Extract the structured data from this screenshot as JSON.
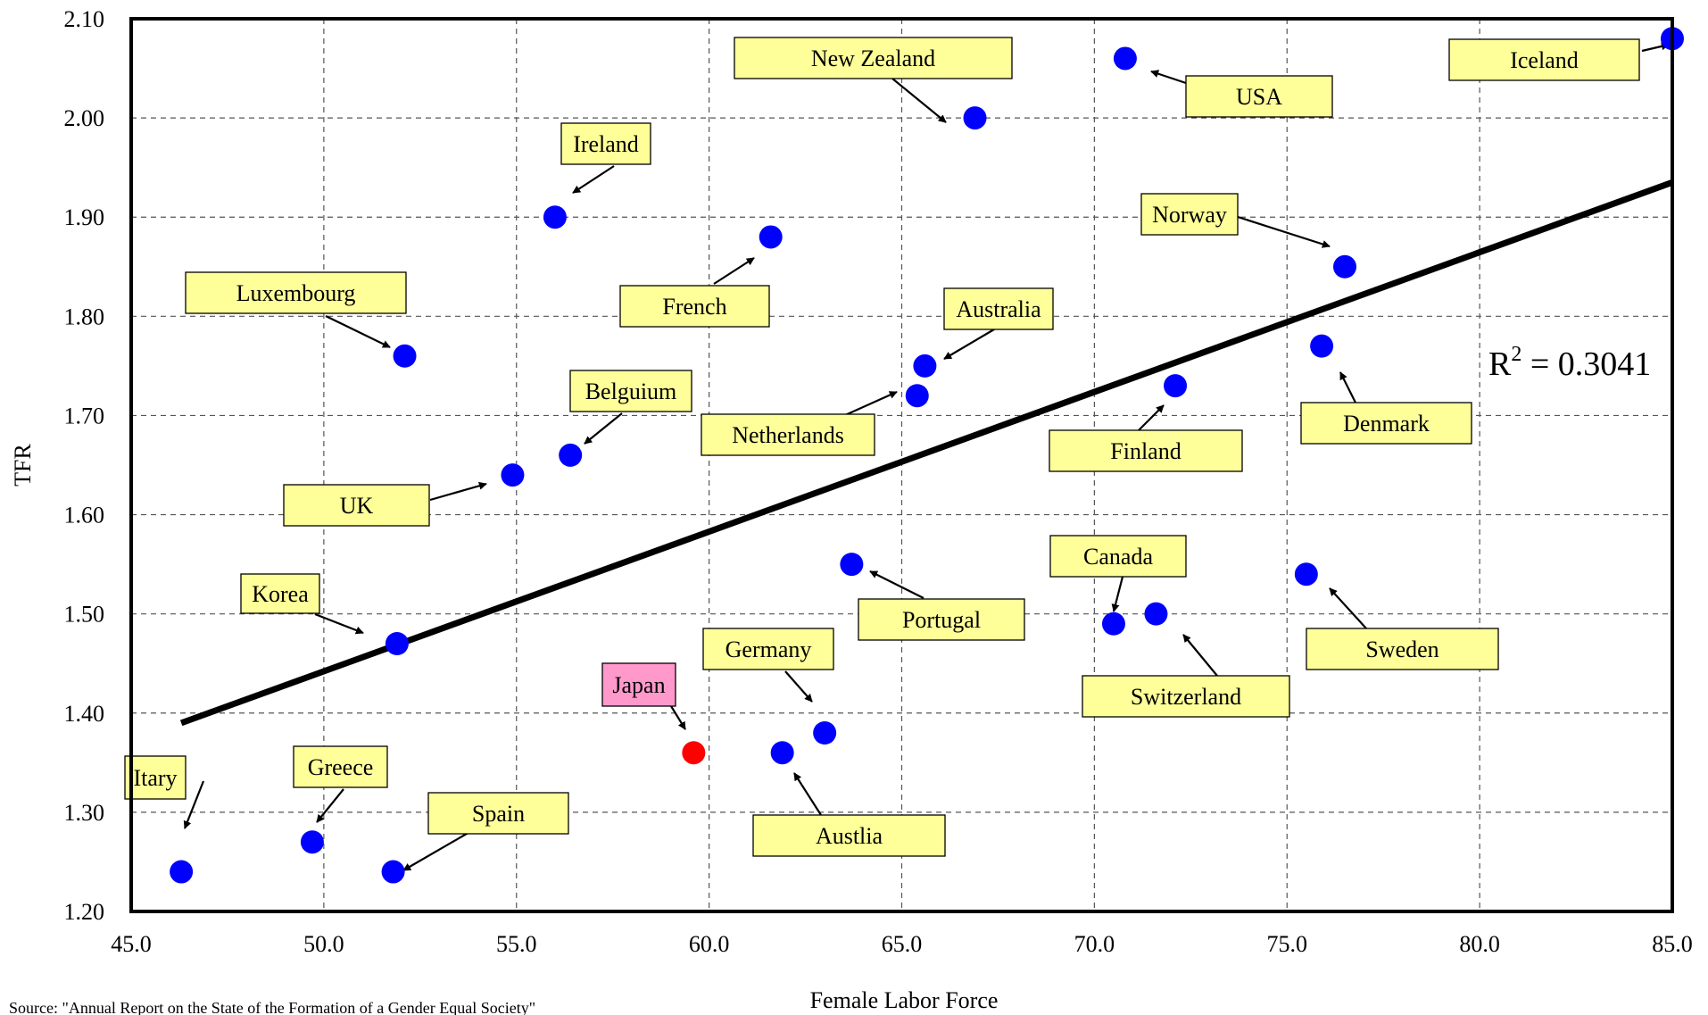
{
  "chart_data": {
    "type": "scatter",
    "xlabel": "Female Labor Force",
    "ylabel": "TFR",
    "xlim": [
      45.0,
      85.0
    ],
    "ylim": [
      1.2,
      2.1
    ],
    "x_ticks": [
      "45.0",
      "50.0",
      "55.0",
      "60.0",
      "65.0",
      "70.0",
      "75.0",
      "80.0",
      "85.0"
    ],
    "y_ticks": [
      "1.20",
      "1.30",
      "1.40",
      "1.50",
      "1.60",
      "1.70",
      "1.80",
      "1.90",
      "2.00",
      "2.10"
    ],
    "grid": true,
    "points": [
      {
        "label": "Itary",
        "x": 46.3,
        "y": 1.24,
        "color": "#0000ff"
      },
      {
        "label": "Greece",
        "x": 49.7,
        "y": 1.27,
        "color": "#0000ff"
      },
      {
        "label": "Spain",
        "x": 51.8,
        "y": 1.24,
        "color": "#0000ff"
      },
      {
        "label": "Korea",
        "x": 51.9,
        "y": 1.47,
        "color": "#0000ff"
      },
      {
        "label": "Luxembourg",
        "x": 52.1,
        "y": 1.76,
        "color": "#0000ff"
      },
      {
        "label": "UK",
        "x": 54.9,
        "y": 1.64,
        "color": "#0000ff"
      },
      {
        "label": "Belguium",
        "x": 56.4,
        "y": 1.66,
        "color": "#0000ff"
      },
      {
        "label": "Ireland",
        "x": 56.0,
        "y": 1.9,
        "color": "#0000ff"
      },
      {
        "label": "Japan",
        "x": 59.6,
        "y": 1.36,
        "color": "#ff0000"
      },
      {
        "label": "French",
        "x": 61.6,
        "y": 1.88,
        "color": "#0000ff"
      },
      {
        "label": "Austlia",
        "x": 61.9,
        "y": 1.36,
        "color": "#0000ff"
      },
      {
        "label": "Germany",
        "x": 63.0,
        "y": 1.38,
        "color": "#0000ff"
      },
      {
        "label": "Portugal",
        "x": 63.7,
        "y": 1.55,
        "color": "#0000ff"
      },
      {
        "label": "Netherlands",
        "x": 65.4,
        "y": 1.72,
        "color": "#0000ff"
      },
      {
        "label": "Australia",
        "x": 65.6,
        "y": 1.75,
        "color": "#0000ff"
      },
      {
        "label": "New Zealand",
        "x": 66.9,
        "y": 2.0,
        "color": "#0000ff"
      },
      {
        "label": "Canada",
        "x": 70.5,
        "y": 1.49,
        "color": "#0000ff"
      },
      {
        "label": "USA",
        "x": 70.8,
        "y": 2.06,
        "color": "#0000ff"
      },
      {
        "label": "Switzerland",
        "x": 71.6,
        "y": 1.5,
        "color": "#0000ff"
      },
      {
        "label": "Finland",
        "x": 72.1,
        "y": 1.73,
        "color": "#0000ff"
      },
      {
        "label": "Sweden",
        "x": 75.5,
        "y": 1.54,
        "color": "#0000ff"
      },
      {
        "label": "Denmark",
        "x": 75.9,
        "y": 1.77,
        "color": "#0000ff"
      },
      {
        "label": "Norway",
        "x": 76.5,
        "y": 1.85,
        "color": "#0000ff"
      },
      {
        "label": "Iceland",
        "x": 85.0,
        "y": 2.08,
        "color": "#0000ff"
      }
    ],
    "trendline": {
      "x": [
        46.3,
        85.0
      ],
      "y": [
        1.39,
        1.935
      ]
    },
    "annotation": {
      "r2_base": "R",
      "r2_sup": "2",
      "r2_value": " = 0.3041"
    },
    "colors": {
      "label_box": "#ffff99",
      "japan_label_box": "#ff99cc"
    }
  },
  "source": "Source: \"Annual Report on the State of the Formation of a Gender Equal Society\""
}
